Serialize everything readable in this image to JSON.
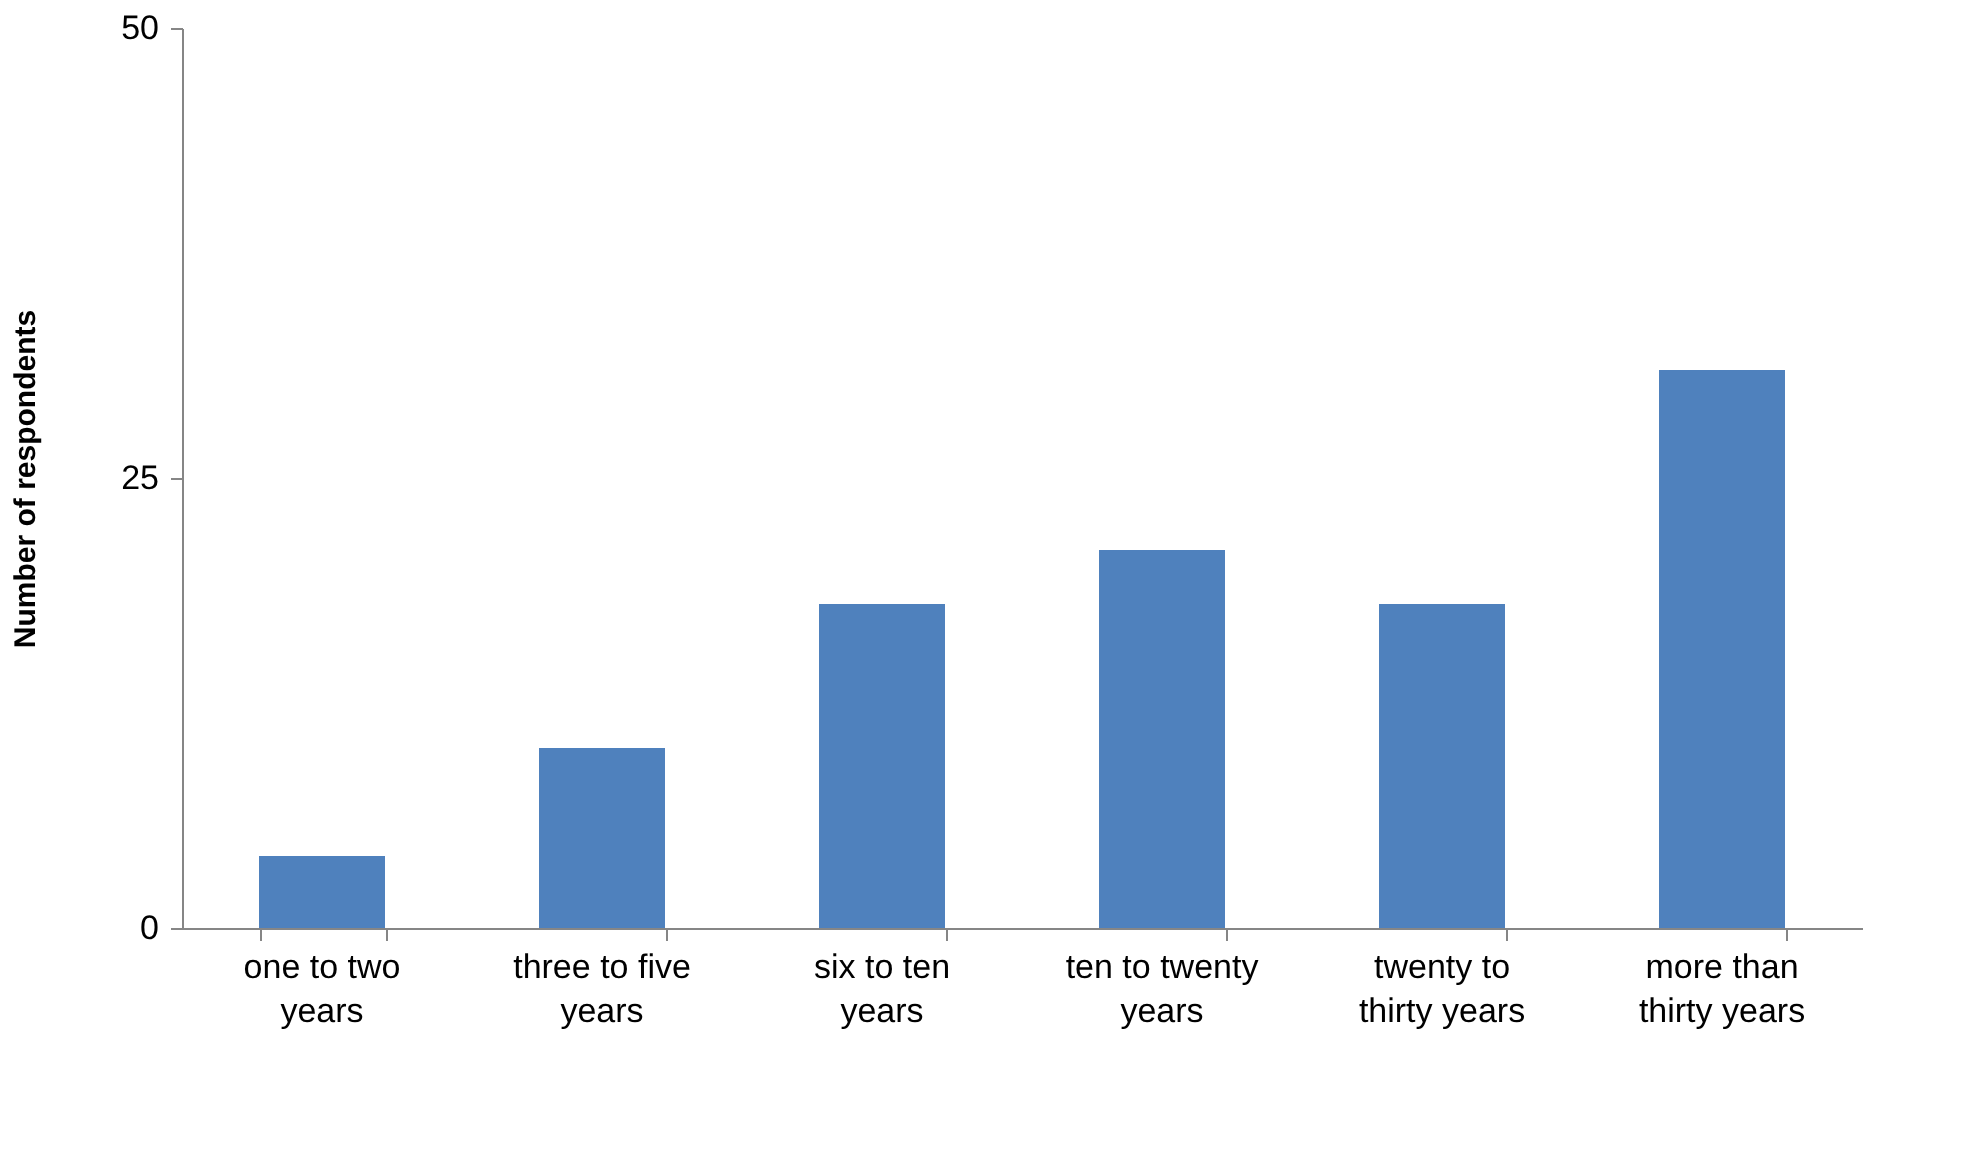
{
  "chart_data": {
    "type": "bar",
    "ylabel": "Number of respondents",
    "categories": [
      "one to two years",
      "three to five years",
      "six to ten years",
      "ten to twenty years",
      "twenty to thirty years",
      "more than thirty years"
    ],
    "values": [
      4,
      10,
      18,
      21,
      18,
      31
    ],
    "color": "#4f81bd",
    "ylim": [
      0,
      50
    ],
    "yticks": [
      0,
      25,
      50
    ],
    "grid": false
  }
}
